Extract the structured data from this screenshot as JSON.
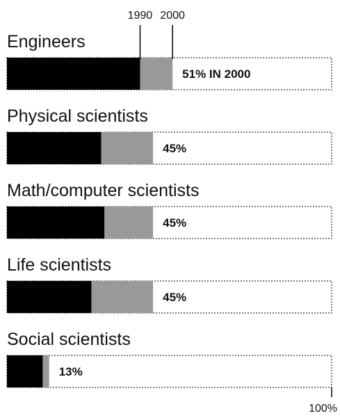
{
  "chart_data": {
    "type": "bar",
    "categories": [
      "Engineers",
      "Physical scientists",
      "Math/computer scientists",
      "Life scientists",
      "Social scientists"
    ],
    "series": [
      {
        "values": [
          41,
          29,
          30,
          26,
          11
        ]
      },
      {
        "values": [
          51,
          45,
          45,
          45,
          13
        ]
      }
    ],
    "value_labels": [
      "51% IN 2000",
      "45%",
      "45%",
      "45%",
      "13%"
    ],
    "marker_labels": [
      "1990",
      "2000"
    ],
    "scale_label": "100%",
    "xlim": [
      0,
      100
    ],
    "colors": {
      "1990": "#000000",
      "2000": "#999999",
      "outline": "#000000"
    }
  }
}
